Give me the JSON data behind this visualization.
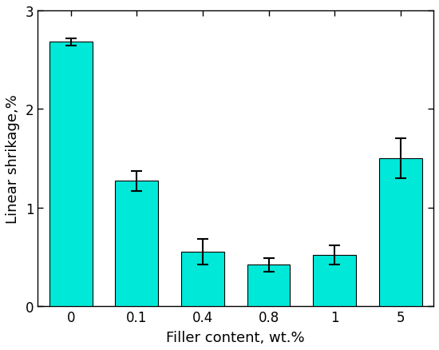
{
  "categories": [
    "0",
    "0.1",
    "0.4",
    "0.8",
    "1",
    "5"
  ],
  "values": [
    2.68,
    1.27,
    0.55,
    0.42,
    0.52,
    1.5
  ],
  "errors": [
    0.04,
    0.1,
    0.13,
    0.07,
    0.1,
    0.2
  ],
  "bar_color": "#00E8D8",
  "edge_color": "#000000",
  "xlabel": "Filler content, wt.%",
  "ylabel": "Linear shrikage,%",
  "ylim": [
    0,
    3.0
  ],
  "yticks": [
    0,
    1,
    2,
    3
  ],
  "bar_width": 0.65,
  "axis_label_fontsize": 13,
  "tick_fontsize": 12,
  "error_capsize": 5,
  "error_linewidth": 1.5,
  "background_color": "#ffffff",
  "figure_width": 5.5,
  "figure_height": 4.39
}
